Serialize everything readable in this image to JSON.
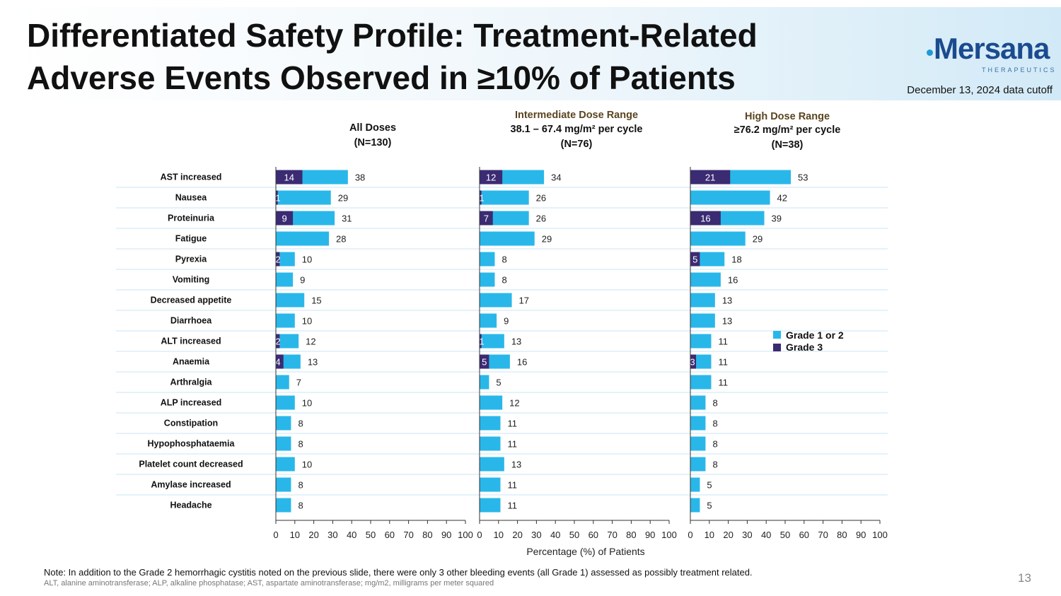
{
  "slide": {
    "title": "Differentiated Safety Profile: Treatment-Related Adverse Events Observed in ≥10% of Patients",
    "logo_text": "Mersana",
    "logo_subtext": "THERAPEUTICS",
    "data_cutoff": "December 13, 2024 data cutoff",
    "note": "Note: In addition to the Grade 2 hemorrhagic cystitis noted on the previous slide, there were only 3 other bleeding events (all Grade 1) assessed as possibly treatment related.",
    "abbreviations": "ALT, alanine aminotransferase; ALP, alkaline phosphatase; AST, aspartate aminotransferase; mg/m2, milligrams per meter squared",
    "page_number": "13"
  },
  "colors": {
    "grade12": "#29b7ea",
    "grade3": "#3b2b73",
    "title_accent": "#5a4520"
  },
  "chart_data": {
    "type": "bar",
    "orientation": "horizontal",
    "stacked": true,
    "xlabel": "Percentage (%) of Patients",
    "xlim": [
      0,
      100
    ],
    "xticks": [
      0,
      10,
      20,
      30,
      40,
      50,
      60,
      70,
      80,
      90,
      100
    ],
    "legend": {
      "placement": "right",
      "entries": [
        "Grade 1 or 2",
        "Grade 3"
      ]
    },
    "categories": [
      "AST increased",
      "Nausea",
      "Proteinuria",
      "Fatigue",
      "Pyrexia",
      "Vomiting",
      "Decreased appetite",
      "Diarrhoea",
      "ALT increased",
      "Anaemia",
      "Arthralgia",
      "ALP increased",
      "Constipation",
      "Hypophosphataemia",
      "Platelet count decreased",
      "Amylase increased",
      "Headache"
    ],
    "panels": [
      {
        "title": "All Doses",
        "subtitle": "",
        "n": "(N=130)",
        "total": [
          38,
          29,
          31,
          28,
          10,
          9,
          15,
          10,
          12,
          13,
          7,
          10,
          8,
          8,
          10,
          8,
          8
        ],
        "grade3": [
          14,
          1,
          9,
          0,
          2,
          0,
          0,
          0,
          2,
          4,
          0,
          0,
          0,
          0,
          0,
          0,
          0
        ]
      },
      {
        "title": "Intermediate Dose Range",
        "subtitle": "38.1 – 67.4 mg/m² per cycle",
        "n": "(N=76)",
        "total": [
          34,
          26,
          26,
          29,
          8,
          8,
          17,
          9,
          13,
          16,
          5,
          12,
          11,
          11,
          13,
          11,
          11
        ],
        "grade3": [
          12,
          1,
          7,
          0,
          0,
          0,
          0,
          0,
          1,
          5,
          0,
          0,
          0,
          0,
          0,
          0,
          0
        ]
      },
      {
        "title": "High Dose Range",
        "subtitle": "≥76.2 mg/m² per cycle",
        "n": "(N=38)",
        "total": [
          53,
          42,
          39,
          29,
          18,
          16,
          13,
          13,
          11,
          11,
          11,
          8,
          8,
          8,
          8,
          5,
          5
        ],
        "grade3": [
          21,
          0,
          16,
          0,
          5,
          0,
          0,
          0,
          0,
          3,
          0,
          0,
          0,
          0,
          0,
          0,
          0
        ]
      }
    ]
  }
}
